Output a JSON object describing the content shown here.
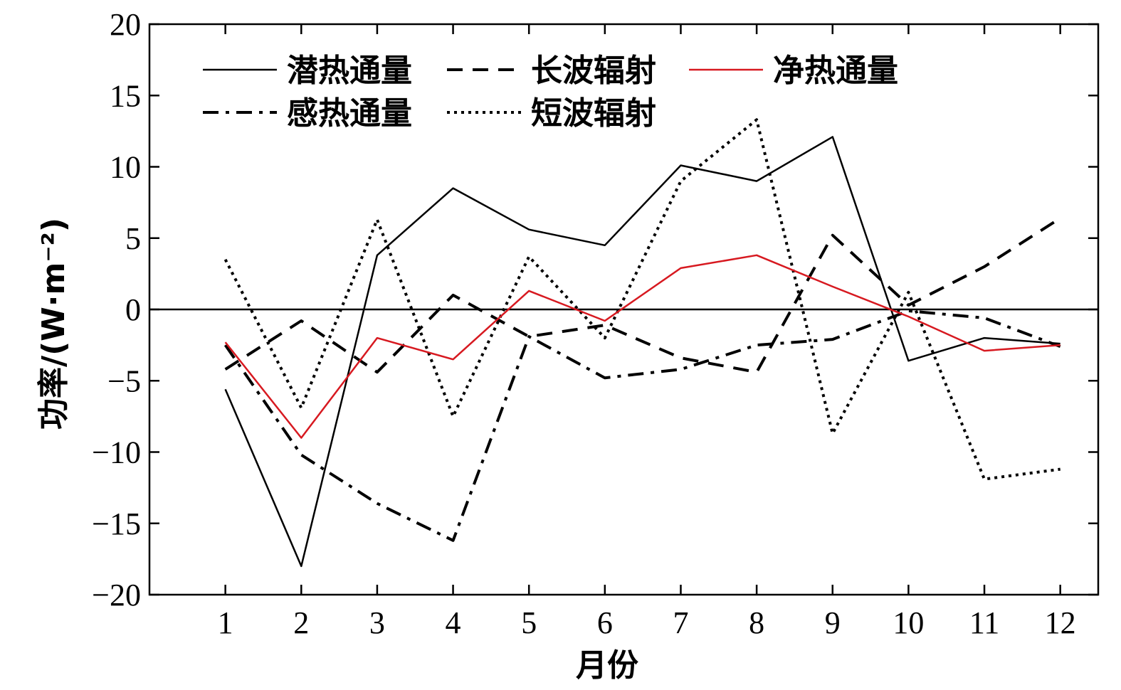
{
  "chart_data": {
    "type": "line",
    "xlabel": "月份",
    "ylabel": "功率/(W·m⁻²)",
    "x": [
      1,
      2,
      3,
      4,
      5,
      6,
      7,
      8,
      9,
      10,
      11,
      12
    ],
    "xlim": [
      0,
      12.5
    ],
    "ylim": [
      -20,
      20
    ],
    "yticks": [
      20,
      15,
      10,
      5,
      0,
      -5,
      -10,
      -15,
      -20
    ],
    "ytick_labels": [
      "20",
      "15",
      "10",
      "5",
      "0",
      "−5",
      "−10",
      "−15",
      "−20"
    ],
    "grid": false,
    "zero_line": true,
    "legend_position": "top-left",
    "series": [
      {
        "name": "潜热通量",
        "style": "solid",
        "color": "#000000",
        "values": [
          -5.6,
          -18.0,
          3.8,
          8.5,
          5.6,
          4.5,
          10.1,
          9.0,
          12.1,
          -3.6,
          -2.0,
          -2.4
        ]
      },
      {
        "name": "长波辐射",
        "style": "dashed",
        "color": "#000000",
        "values": [
          -4.2,
          -0.8,
          -4.4,
          1.0,
          -1.9,
          -1.1,
          -3.4,
          -4.4,
          5.2,
          0.3,
          3.0,
          6.4
        ]
      },
      {
        "name": "净热通量",
        "style": "solid",
        "color": "#d71920",
        "values": [
          -2.3,
          -9.0,
          -2.0,
          -3.5,
          1.3,
          -0.8,
          2.9,
          3.8,
          1.6,
          -0.5,
          -2.9,
          -2.5
        ]
      },
      {
        "name": "感热通量",
        "style": "dashdot",
        "color": "#000000",
        "values": [
          -2.5,
          -10.2,
          -13.6,
          -16.2,
          -1.9,
          -4.8,
          -4.2,
          -2.5,
          -2.1,
          -0.1,
          -0.6,
          -2.6
        ]
      },
      {
        "name": "短波辐射",
        "style": "dotted",
        "color": "#000000",
        "values": [
          3.5,
          -6.9,
          6.3,
          -7.5,
          3.7,
          -2.0,
          9.0,
          13.3,
          -8.7,
          1.2,
          -11.9,
          -11.2
        ]
      }
    ]
  }
}
